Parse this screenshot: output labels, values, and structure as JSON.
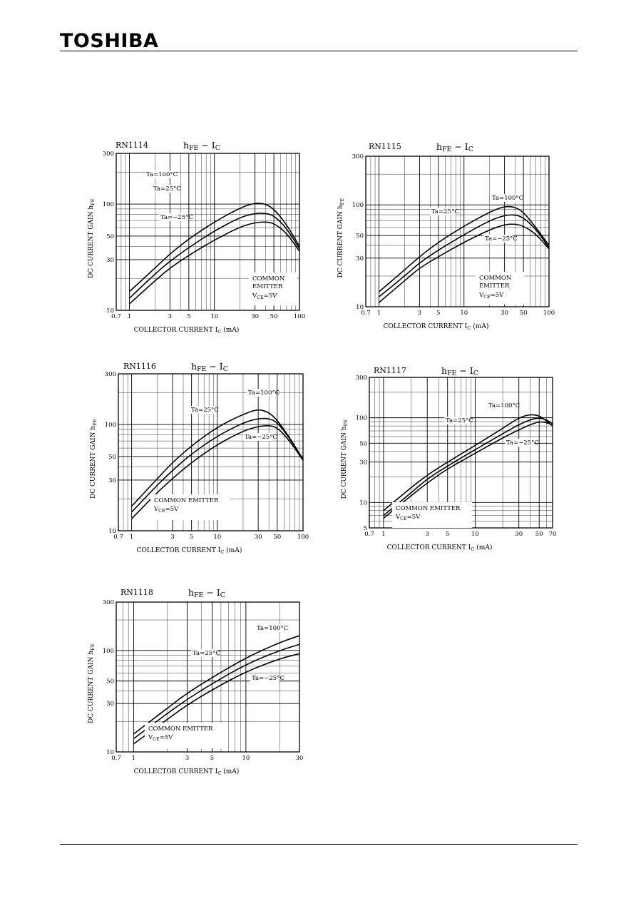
{
  "header": {
    "logo": "TOSHIBA"
  },
  "charts_common": {
    "ylabel": "DC CURRENT GAIN  h",
    "ylabel_sub": "FE",
    "xlabel": "COLLECTOR CURRENT  I",
    "xlabel_sub": "C",
    "xlabel_unit": "(mA)",
    "title_h": "h",
    "title_sub1": "FE",
    "title_mid": " − I",
    "title_sub2": "C",
    "vce_prefix": "V",
    "vce_sub": "CE",
    "vce_value": "=5V"
  },
  "chart_data": [
    {
      "type": "line",
      "model": "RN1114",
      "xscale": "log",
      "yscale": "log",
      "xlim": [
        0.7,
        100
      ],
      "ylim": [
        10,
        300
      ],
      "xticks": [
        "0.7",
        "1",
        "3",
        "5",
        "10",
        "30",
        "50",
        "100"
      ],
      "yticks": [
        "10",
        "30",
        "50",
        "100",
        "300"
      ],
      "note": [
        "COMMON",
        "EMITTER"
      ],
      "series": [
        {
          "name": "Ta=100°C",
          "x": [
            1,
            2,
            3,
            5,
            10,
            20,
            30,
            40,
            50,
            70,
            100
          ],
          "y": [
            15,
            25,
            34,
            47,
            68,
            92,
            103,
            100,
            90,
            65,
            40
          ]
        },
        {
          "name": "Ta=25°C",
          "x": [
            1,
            2,
            3,
            5,
            10,
            20,
            30,
            40,
            50,
            70,
            100
          ],
          "y": [
            13,
            22,
            29,
            39,
            56,
            75,
            82,
            82,
            78,
            60,
            38
          ]
        },
        {
          "name": "Ta=−25°C",
          "x": [
            1,
            2,
            3,
            5,
            10,
            20,
            30,
            40,
            50,
            70,
            100
          ],
          "y": [
            11.5,
            19,
            25,
            33,
            46,
            61,
            67,
            68,
            66,
            54,
            36
          ]
        }
      ]
    },
    {
      "type": "line",
      "model": "RN1115",
      "xscale": "log",
      "yscale": "log",
      "xlim": [
        0.7,
        100
      ],
      "ylim": [
        10,
        300
      ],
      "xticks": [
        "0.7",
        "1",
        "3",
        "5",
        "10",
        "30",
        "50",
        "100"
      ],
      "yticks": [
        "10",
        "30",
        "50",
        "100",
        "300"
      ],
      "note": [
        "COMMON",
        "EMITTER"
      ],
      "series": [
        {
          "name": "Ta=100°C",
          "x": [
            1,
            2,
            3,
            5,
            10,
            20,
            30,
            40,
            50,
            70,
            100
          ],
          "y": [
            14,
            23,
            31,
            43,
            62,
            85,
            97,
            95,
            85,
            60,
            40
          ]
        },
        {
          "name": "Ta=25°C",
          "x": [
            1,
            2,
            3,
            5,
            10,
            20,
            30,
            40,
            50,
            70,
            100
          ],
          "y": [
            12.5,
            20,
            27,
            36,
            51,
            70,
            79,
            80,
            75,
            58,
            38
          ]
        },
        {
          "name": "Ta=−25°C",
          "x": [
            1,
            2,
            3,
            5,
            10,
            20,
            30,
            40,
            50,
            70,
            100
          ],
          "y": [
            11,
            18,
            24,
            31,
            43,
            57,
            64,
            65,
            62,
            52,
            37
          ]
        }
      ]
    },
    {
      "type": "line",
      "model": "RN1116",
      "xscale": "log",
      "yscale": "log",
      "xlim": [
        0.7,
        100
      ],
      "ylim": [
        10,
        300
      ],
      "xticks": [
        "0.7",
        "1",
        "3",
        "5",
        "10",
        "30",
        "50",
        "100"
      ],
      "yticks": [
        "10",
        "30",
        "50",
        "100",
        "300"
      ],
      "note": [
        "COMMON EMITTER"
      ],
      "series": [
        {
          "name": "Ta=100°C",
          "x": [
            1,
            2,
            3,
            5,
            10,
            20,
            30,
            40,
            50,
            70,
            100
          ],
          "y": [
            17,
            31,
            44,
            63,
            95,
            125,
            140,
            130,
            110,
            75,
            47
          ]
        },
        {
          "name": "Ta=25°C",
          "x": [
            1,
            2,
            3,
            5,
            10,
            20,
            30,
            40,
            50,
            70,
            100
          ],
          "y": [
            15,
            27,
            37,
            53,
            78,
            104,
            114,
            114,
            105,
            74,
            47
          ]
        },
        {
          "name": "Ta=−25°C",
          "x": [
            1,
            2,
            3,
            5,
            10,
            20,
            30,
            40,
            50,
            70,
            100
          ],
          "y": [
            13,
            23,
            31,
            44,
            65,
            87,
            96,
            98,
            94,
            70,
            46
          ]
        }
      ]
    },
    {
      "type": "line",
      "model": "RN1117",
      "xscale": "log",
      "yscale": "log",
      "xlim": [
        0.7,
        70
      ],
      "ylim": [
        5,
        300
      ],
      "xticks": [
        "0.7",
        "1",
        "3",
        "5",
        "10",
        "30",
        "50",
        "70"
      ],
      "yticks": [
        "5",
        "10",
        "30",
        "50",
        "100",
        "300"
      ],
      "note": [
        "COMMON EMITTER"
      ],
      "series": [
        {
          "name": "Ta=100°C",
          "x": [
            1,
            2,
            3,
            5,
            10,
            20,
            30,
            40,
            50,
            60,
            70
          ],
          "y": [
            8,
            15,
            21,
            30,
            47,
            75,
            100,
            110,
            106,
            92,
            80
          ]
        },
        {
          "name": "Ta=25°C",
          "x": [
            1,
            2,
            3,
            5,
            10,
            20,
            30,
            40,
            50,
            60,
            70
          ],
          "y": [
            7,
            13,
            19,
            27,
            42,
            65,
            83,
            95,
            100,
            95,
            85
          ]
        },
        {
          "name": "Ta=−25°C",
          "x": [
            1,
            2,
            3,
            5,
            10,
            20,
            30,
            40,
            50,
            60,
            70
          ],
          "y": [
            6.5,
            12,
            17,
            25,
            38,
            58,
            72,
            83,
            90,
            88,
            82
          ]
        }
      ]
    },
    {
      "type": "line",
      "model": "RN1118",
      "xscale": "log",
      "yscale": "log",
      "xlim": [
        0.7,
        30
      ],
      "ylim": [
        10,
        300
      ],
      "xticks": [
        "0.7",
        "1",
        "3",
        "5",
        "10",
        "30"
      ],
      "yticks": [
        "10",
        "30",
        "50",
        "100",
        "300"
      ],
      "note": [
        "COMMON EMITTER"
      ],
      "series": [
        {
          "name": "Ta=100°C",
          "x": [
            1,
            2,
            3,
            5,
            10,
            20,
            30
          ],
          "y": [
            15,
            27,
            38,
            54,
            85,
            120,
            140
          ]
        },
        {
          "name": "Ta=25°C",
          "x": [
            1,
            2,
            3,
            5,
            10,
            20,
            30
          ],
          "y": [
            13.5,
            24,
            33,
            47,
            73,
            100,
            115
          ]
        },
        {
          "name": "Ta=−25°C",
          "x": [
            1,
            2,
            3,
            5,
            10,
            20,
            30
          ],
          "y": [
            12,
            21,
            29,
            41,
            62,
            83,
            93
          ]
        }
      ]
    }
  ]
}
